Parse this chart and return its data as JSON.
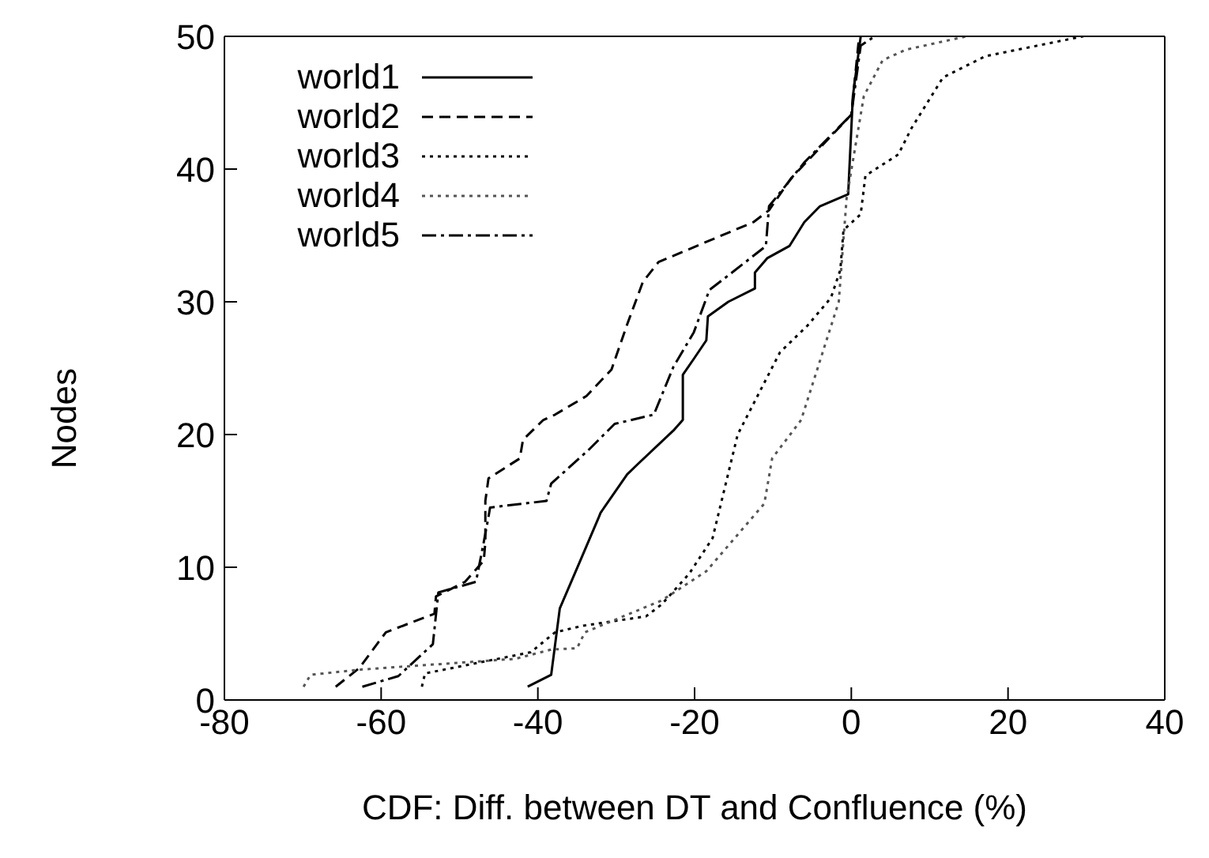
{
  "chart_data": {
    "type": "line",
    "xlabel": "CDF: Diff. between DT and Confluence (%)",
    "ylabel": "Nodes",
    "xlim": [
      -80,
      40
    ],
    "xticks": [
      -80,
      -60,
      -40,
      -20,
      0,
      20,
      40
    ],
    "ylim": [
      0,
      50
    ],
    "yticks": [
      0,
      10,
      20,
      30,
      40,
      50
    ],
    "grid": false,
    "legend": "top left",
    "marker": "none",
    "series": [
      {
        "name": "world1",
        "color": "#000000",
        "line_style": "solid",
        "x": [
          -41.3,
          -38.3,
          -37.2,
          -34.8,
          -32.2,
          -32,
          -28.6,
          -27.2,
          -22.7,
          -21.5,
          -21.5,
          -20.1,
          -18.5,
          -18.3,
          -15.7,
          -12.3,
          -12.3,
          -10.7,
          -7.9,
          -6,
          -4,
          -0.4,
          0.2,
          1.2
        ],
        "values": [
          1,
          1.9,
          6.9,
          10.2,
          13.8,
          14.1,
          17,
          17.8,
          20.3,
          21.1,
          24.5,
          25.7,
          27.1,
          28.9,
          30,
          31,
          32.2,
          33.3,
          34.2,
          36,
          37.2,
          38.1,
          45.5,
          50
        ]
      },
      {
        "name": "world2",
        "color": "#000000",
        "line_style": "dashed",
        "x": [
          -65.8,
          -62.8,
          -59.4,
          -53.2,
          -53,
          -49.3,
          -46.9,
          -46.7,
          -46.7,
          -46.3,
          -42.3,
          -41.9,
          -39.3,
          -37.8,
          -33.8,
          -30.6,
          -28.6,
          -26.6,
          -24.6,
          -12.5,
          -10.5,
          -7.7,
          -4,
          0,
          1
        ],
        "values": [
          1,
          2.4,
          5.1,
          6.5,
          7.8,
          8.9,
          10.5,
          11.9,
          15,
          16.7,
          18.2,
          19.6,
          21.1,
          21.5,
          22.9,
          24.9,
          28.3,
          31.5,
          33,
          36,
          36.9,
          39.3,
          41.6,
          44.1,
          50
        ]
      },
      {
        "name": "world3",
        "color": "#000000",
        "line_style": "dotted",
        "x": [
          -54.8,
          -54.4,
          -40.9,
          -37.8,
          -34.2,
          -26.2,
          -24.2,
          -20.7,
          -17.7,
          -14.5,
          -9.1,
          -5.6,
          -2.6,
          -1.4,
          -1,
          1.2,
          1.8,
          6,
          7.7,
          11.7,
          17.1,
          29.6
        ],
        "values": [
          1,
          2,
          3.6,
          5.1,
          5.6,
          6.3,
          7.2,
          9.5,
          12.2,
          20,
          26.2,
          28.2,
          30.3,
          32.4,
          35.4,
          36.6,
          39.5,
          41.1,
          43.1,
          46.9,
          48.5,
          50
        ]
      },
      {
        "name": "world4",
        "color": "#555555",
        "line_style": "dotted",
        "x": [
          -69.9,
          -69,
          -62.4,
          -42.9,
          -38.3,
          -35,
          -34,
          -24.2,
          -18.5,
          -11.1,
          -10.1,
          -6.4,
          -1.6,
          -0.6,
          1.6,
          4,
          7,
          14.7
        ],
        "values": [
          1,
          1.9,
          2.3,
          3.1,
          3.8,
          3.9,
          5.1,
          7.5,
          9.7,
          14.8,
          18.2,
          21.1,
          30,
          37.8,
          45.5,
          48.2,
          49,
          50
        ]
      },
      {
        "name": "world5",
        "color": "#000000",
        "line_style": "dashdot",
        "x": [
          -62.4,
          -57.8,
          -53.4,
          -52.7,
          -47.9,
          -46.9,
          -46.3,
          -46.1,
          -38.9,
          -38.3,
          -33.6,
          -30.2,
          -25.2,
          -22.7,
          -20.1,
          -18.1,
          -16.1,
          -10.9,
          -10.5,
          -6,
          0,
          1.2,
          3
        ],
        "values": [
          1,
          1.8,
          4.2,
          8.1,
          8.9,
          11.9,
          13.8,
          14.5,
          15,
          16.3,
          18.8,
          20.8,
          21.5,
          25.1,
          27.7,
          30.9,
          31.8,
          34.2,
          37.2,
          40.5,
          44.1,
          49.3,
          50
        ]
      }
    ]
  }
}
